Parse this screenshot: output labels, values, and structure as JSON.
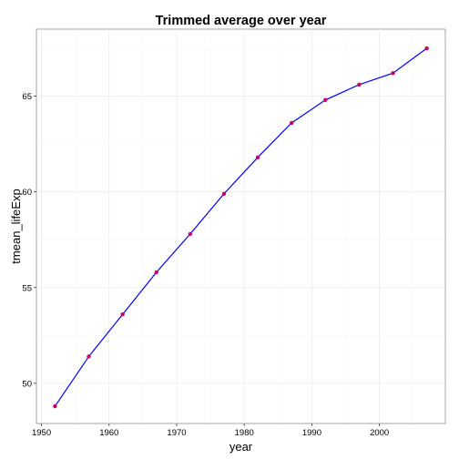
{
  "chart_data": {
    "type": "line",
    "title": "Trimmed average over year",
    "xlabel": "year",
    "ylabel": "tmean_lifeExp",
    "xlim": [
      1949.25,
      2009.75
    ],
    "ylim": [
      47.9,
      68.5
    ],
    "x_ticks": [
      1950,
      1960,
      1970,
      1980,
      1990,
      2000
    ],
    "y_ticks": [
      50,
      55,
      60,
      65
    ],
    "x_tick_labels": [
      "1950",
      "1960",
      "1970",
      "1980",
      "1990",
      "2000"
    ],
    "y_tick_labels": [
      "50",
      "55",
      "60",
      "65"
    ],
    "grid": true,
    "series": [
      {
        "x": [
          1952,
          1957,
          1962,
          1967,
          1972,
          1977,
          1982,
          1987,
          1992,
          1997,
          2002,
          2007
        ],
        "y": [
          48.8,
          51.4,
          53.6,
          55.8,
          57.8,
          59.9,
          61.8,
          63.6,
          64.8,
          65.6,
          66.2,
          67.5
        ],
        "line_color": "#0000ff",
        "point_color": "#cc0066"
      }
    ]
  }
}
